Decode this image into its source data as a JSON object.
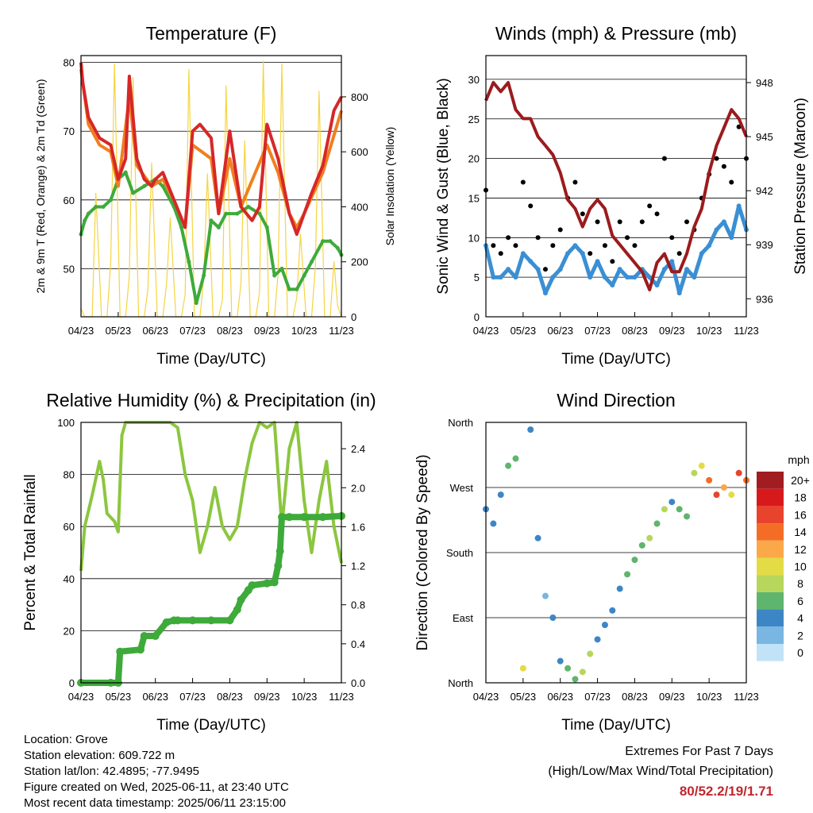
{
  "chart_data": [
    {
      "type": "line",
      "title": "Temperature (F)",
      "xlabel": "Time (Day/UTC)",
      "ylabel": "2m & 9m T (Red, Orange) & 2m Td (Green)",
      "y2label": "Solar Insolation (Yellow)",
      "x_ticks": [
        "04/23",
        "05/23",
        "06/23",
        "07/23",
        "08/23",
        "09/23",
        "10/23",
        "11/23"
      ],
      "ylim": [
        43,
        81
      ],
      "y_ticks": [
        50,
        60,
        70,
        80
      ],
      "y2lim": [
        0,
        950
      ],
      "y2_ticks": [
        0,
        200,
        400,
        600,
        800
      ],
      "grid": true,
      "series": [
        {
          "name": "2m T",
          "color": "#d62728",
          "axis": "left",
          "x": [
            0,
            0.05,
            0.2,
            0.5,
            0.8,
            1.0,
            1.2,
            1.3,
            1.5,
            1.7,
            1.9,
            2.0,
            2.2,
            2.5,
            2.8,
            3.0,
            3.2,
            3.5,
            3.7,
            4.0,
            4.3,
            4.6,
            4.8,
            5.0,
            5.3,
            5.6,
            5.8,
            6.0,
            6.2,
            6.5,
            6.8,
            7.0
          ],
          "y": [
            80,
            77,
            72,
            69,
            68,
            63,
            66,
            78,
            66,
            63,
            62,
            63,
            64,
            60,
            56,
            70,
            71,
            69,
            58,
            70,
            59,
            57,
            59,
            71,
            66,
            58,
            55,
            58,
            61,
            65,
            73,
            75
          ]
        },
        {
          "name": "9m T",
          "color": "#f07f1e",
          "axis": "left",
          "x": [
            0,
            0.2,
            0.5,
            0.8,
            1.0,
            1.3,
            1.5,
            1.9,
            2.2,
            2.5,
            2.8,
            3.0,
            3.5,
            3.7,
            4.0,
            4.3,
            5.0,
            5.3,
            5.6,
            5.8,
            6.0,
            6.5,
            7.0
          ],
          "y": [
            79,
            71,
            68,
            67,
            62,
            75,
            65,
            62,
            63,
            60,
            56,
            68,
            66,
            58,
            66,
            59,
            68,
            64,
            58,
            56,
            58,
            64,
            73
          ]
        },
        {
          "name": "2m Td",
          "color": "#3eaa3a",
          "axis": "left",
          "x": [
            0,
            0.1,
            0.2,
            0.4,
            0.6,
            0.8,
            1.0,
            1.2,
            1.4,
            1.7,
            2.0,
            2.2,
            2.5,
            2.7,
            2.9,
            3.1,
            3.3,
            3.5,
            3.7,
            3.9,
            4.2,
            4.5,
            4.8,
            5.0,
            5.2,
            5.4,
            5.6,
            5.8,
            6.0,
            6.2,
            6.5,
            6.7,
            6.9,
            7.0
          ],
          "y": [
            55,
            57,
            58,
            59,
            59,
            60,
            63,
            64,
            61,
            62,
            63,
            62,
            59,
            56,
            51,
            45,
            49,
            57,
            56,
            58,
            58,
            59,
            58,
            56,
            49,
            50,
            47,
            47,
            49,
            51,
            54,
            54,
            53,
            52
          ]
        },
        {
          "name": "Solar Insolation",
          "color": "#f5d442",
          "axis": "right",
          "x": [
            0,
            0.1,
            0.3,
            0.4,
            0.55,
            0.7,
            0.8,
            0.9,
            1.05,
            1.2,
            1.3,
            1.4,
            1.55,
            1.7,
            1.8,
            1.9,
            2.05,
            2.2,
            2.3,
            2.4,
            2.55,
            2.7,
            2.8,
            2.9,
            3.05,
            3.2,
            3.3,
            3.4,
            3.55,
            3.7,
            3.8,
            3.9,
            4.05,
            4.2,
            4.3,
            4.4,
            4.55,
            4.7,
            4.8,
            4.9,
            5.05,
            5.2,
            5.3,
            5.4,
            5.55,
            5.7,
            5.8,
            5.9,
            6.05,
            6.2,
            6.3,
            6.4,
            6.55,
            6.7,
            6.8,
            6.9,
            7.0
          ],
          "y": [
            30,
            0,
            0,
            450,
            0,
            0,
            200,
            920,
            0,
            0,
            150,
            870,
            0,
            0,
            100,
            560,
            0,
            0,
            120,
            360,
            0,
            0,
            80,
            900,
            0,
            0,
            140,
            520,
            0,
            0,
            60,
            840,
            0,
            0,
            120,
            640,
            0,
            0,
            90,
            930,
            0,
            0,
            160,
            920,
            0,
            0,
            70,
            300,
            0,
            0,
            180,
            820,
            0,
            0,
            200,
            40,
            0
          ]
        }
      ]
    },
    {
      "type": "scatter",
      "title": "Winds (mph) & Pressure (mb)",
      "xlabel": "Time (Day/UTC)",
      "ylabel": "Sonic Wind & Gust (Blue, Black)",
      "y2label": "Station Pressure (Maroon)",
      "x_ticks": [
        "04/23",
        "05/23",
        "06/23",
        "07/23",
        "08/23",
        "09/23",
        "10/23",
        "11/23"
      ],
      "ylim": [
        0,
        33
      ],
      "y_ticks": [
        0,
        5,
        10,
        15,
        20,
        25,
        30
      ],
      "y2lim": [
        935,
        949.5
      ],
      "y2_ticks": [
        936,
        939,
        942,
        945,
        948
      ],
      "grid": true,
      "series": [
        {
          "name": "Sonic Wind",
          "color": "#3a8fd4",
          "x": [
            0,
            0.2,
            0.4,
            0.6,
            0.8,
            1.0,
            1.2,
            1.4,
            1.6,
            1.8,
            2.0,
            2.2,
            2.4,
            2.6,
            2.8,
            3.0,
            3.2,
            3.4,
            3.6,
            3.8,
            4.0,
            4.2,
            4.4,
            4.6,
            4.8,
            5.0,
            5.2,
            5.4,
            5.6,
            5.8,
            6.0,
            6.2,
            6.4,
            6.6,
            6.8,
            7.0
          ],
          "y": [
            9,
            5,
            5,
            6,
            5,
            8,
            7,
            6,
            3,
            5,
            6,
            8,
            9,
            8,
            5,
            7,
            5,
            4,
            6,
            5,
            5,
            6,
            5,
            4,
            6,
            7,
            3,
            6,
            5,
            8,
            9,
            11,
            12,
            10,
            14,
            11
          ]
        },
        {
          "name": "Gust",
          "color": "#000000",
          "x": [
            0,
            0.2,
            0.4,
            0.6,
            0.8,
            1.0,
            1.2,
            1.4,
            1.6,
            1.8,
            2.0,
            2.2,
            2.4,
            2.6,
            2.8,
            3.0,
            3.2,
            3.4,
            3.6,
            3.8,
            4.0,
            4.2,
            4.4,
            4.6,
            4.8,
            5.0,
            5.2,
            5.4,
            5.6,
            5.8,
            6.0,
            6.2,
            6.4,
            6.6,
            6.8,
            7.0
          ],
          "y": [
            16,
            9,
            8,
            10,
            9,
            17,
            14,
            10,
            6,
            9,
            11,
            15,
            17,
            13,
            8,
            12,
            9,
            7,
            12,
            10,
            9,
            12,
            14,
            13,
            20,
            10,
            8,
            12,
            11,
            15,
            18,
            20,
            19,
            17,
            24,
            20
          ]
        },
        {
          "name": "Station Pressure",
          "color": "#9b1b1e",
          "axis": "right",
          "x": [
            0,
            0.2,
            0.4,
            0.6,
            0.8,
            1.0,
            1.2,
            1.4,
            1.6,
            1.8,
            2.0,
            2.2,
            2.4,
            2.6,
            2.8,
            3.0,
            3.2,
            3.4,
            3.6,
            3.8,
            4.0,
            4.2,
            4.4,
            4.6,
            4.8,
            5.0,
            5.2,
            5.4,
            5.6,
            5.8,
            6.0,
            6.2,
            6.4,
            6.6,
            6.8,
            7.0
          ],
          "y": [
            947,
            948,
            947.5,
            948,
            946.5,
            946,
            946,
            945,
            944.5,
            944,
            943,
            941.5,
            941,
            940,
            941,
            941.5,
            941,
            939.5,
            939,
            938.5,
            938,
            937.5,
            936.5,
            938,
            938.5,
            937.5,
            937.5,
            938.5,
            940,
            941,
            943,
            944.5,
            945.5,
            946.5,
            946,
            945
          ]
        }
      ]
    },
    {
      "type": "line",
      "title": "Relative Humidity (%) & Precipitation (in)",
      "xlabel": "Time (Day/UTC)",
      "ylabel": "Percent & Total Rainfall",
      "x_ticks": [
        "04/23",
        "05/23",
        "06/23",
        "07/23",
        "08/23",
        "09/23",
        "10/23",
        "11/23"
      ],
      "ylim": [
        0,
        100
      ],
      "y_ticks": [
        0,
        20,
        40,
        60,
        80,
        100
      ],
      "y2lim": [
        0,
        2.67
      ],
      "y2_ticks": [
        "0.0",
        "0.4",
        "0.8",
        "1.2",
        "1.6",
        "2.0",
        "2.4"
      ],
      "grid": true,
      "series": [
        {
          "name": "Relative Humidity",
          "color": "#8cc63f",
          "axis": "left",
          "x": [
            0,
            0.1,
            0.3,
            0.5,
            0.6,
            0.7,
            0.9,
            1.0,
            1.1,
            1.2,
            1.4,
            1.6,
            1.8,
            2.0,
            2.2,
            2.4,
            2.6,
            2.8,
            3.0,
            3.2,
            3.4,
            3.6,
            3.8,
            4.0,
            4.2,
            4.4,
            4.6,
            4.8,
            5.0,
            5.2,
            5.4,
            5.6,
            5.8,
            6.0,
            6.2,
            6.4,
            6.6,
            6.8,
            7.0
          ],
          "y": [
            43,
            60,
            72,
            85,
            78,
            65,
            62,
            58,
            95,
            100,
            100,
            100,
            100,
            100,
            100,
            100,
            98,
            80,
            70,
            50,
            60,
            75,
            60,
            55,
            60,
            78,
            92,
            100,
            98,
            100,
            60,
            90,
            100,
            70,
            50,
            70,
            85,
            60,
            46
          ]
        },
        {
          "name": "Total Rainfall",
          "color": "#3eaa3a",
          "axis": "right",
          "x": [
            0,
            0.8,
            1.0,
            1.05,
            1.6,
            1.7,
            2.0,
            2.3,
            2.5,
            2.6,
            3.0,
            3.5,
            4.0,
            4.2,
            4.3,
            4.5,
            4.6,
            5.0,
            5.2,
            5.3,
            5.35,
            5.4,
            5.6,
            6.0,
            6.5,
            7.0
          ],
          "y": [
            0,
            0,
            0,
            0.32,
            0.34,
            0.48,
            0.48,
            0.62,
            0.64,
            0.64,
            0.64,
            0.64,
            0.64,
            0.75,
            0.85,
            0.95,
            1.0,
            1.02,
            1.03,
            1.2,
            1.35,
            1.7,
            1.7,
            1.7,
            1.7,
            1.71
          ]
        }
      ]
    },
    {
      "type": "scatter",
      "title": "Wind Direction",
      "xlabel": "Time (Day/UTC)",
      "ylabel": "Direction (Colored By Speed)",
      "x_ticks": [
        "04/23",
        "05/23",
        "06/23",
        "07/23",
        "08/23",
        "09/23",
        "10/23",
        "11/23"
      ],
      "y_ticks": [
        "North",
        "East",
        "South",
        "West",
        "North"
      ],
      "colorbar": {
        "title": "mph",
        "labels": [
          "20+",
          "18",
          "16",
          "14",
          "12",
          "10",
          "8",
          "6",
          "4",
          "2",
          "0"
        ],
        "colors": [
          "#a11d21",
          "#d7191c",
          "#e8432c",
          "#f46d27",
          "#fba849",
          "#e3dc45",
          "#b7d65c",
          "#5fb56d",
          "#3d86c6",
          "#79b6e2",
          "#c2e3f7"
        ]
      },
      "series": [
        {
          "name": "Direction",
          "colored_by": "speed",
          "x": [
            0,
            0.2,
            0.4,
            0.6,
            0.8,
            1.0,
            1.2,
            1.4,
            1.6,
            1.8,
            2.0,
            2.2,
            2.4,
            2.6,
            2.8,
            3.0,
            3.2,
            3.4,
            3.6,
            3.8,
            4.0,
            4.2,
            4.4,
            4.6,
            4.8,
            5.0,
            5.2,
            5.4,
            5.6,
            5.8,
            6.0,
            6.2,
            6.4,
            6.6,
            6.8,
            7.0
          ],
          "y": [
            240,
            220,
            260,
            300,
            310,
            20,
            350,
            200,
            120,
            90,
            30,
            20,
            5,
            15,
            40,
            60,
            80,
            100,
            130,
            150,
            170,
            190,
            200,
            220,
            240,
            250,
            240,
            230,
            290,
            300,
            280,
            260,
            270,
            260,
            290,
            280
          ],
          "speed": [
            4,
            3,
            4,
            6,
            5,
            10,
            4,
            3,
            2,
            3,
            4,
            5,
            6,
            8,
            7,
            3,
            4,
            3,
            4,
            5,
            6,
            5,
            7,
            6,
            8,
            4,
            5,
            6,
            7,
            10,
            14,
            16,
            12,
            10,
            16,
            14
          ]
        }
      ]
    }
  ],
  "footer": {
    "location": "Location: Grove",
    "elevation": "Station elevation: 609.722 m",
    "latlon": "Station lat/lon: 42.4895; -77.9495",
    "created": "Figure created on Wed, 2025-06-11, at 23:40 UTC",
    "recent": "Most recent data timestamp: 2025/06/11 23:15:00"
  },
  "extremes": {
    "title": "Extremes For Past 7 Days",
    "subtitle": "(High/Low/Max Wind/Total Precipitation)",
    "values": "80/52.2/19/1.71"
  }
}
